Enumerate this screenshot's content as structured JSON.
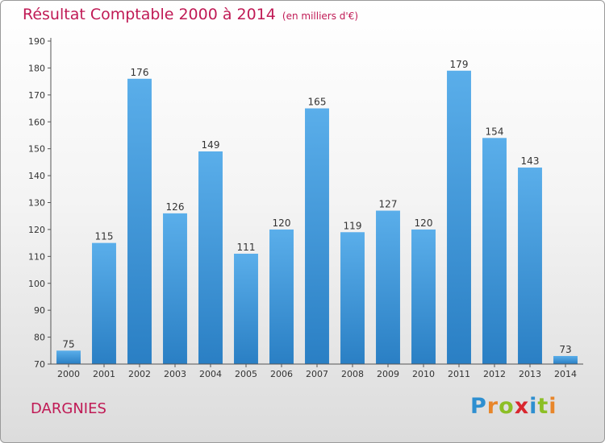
{
  "chart_data": {
    "type": "bar",
    "title": "Résultat Comptable 2000 à 2014",
    "subtitle": "(en milliers d'€)",
    "categories": [
      "2000",
      "2001",
      "2002",
      "2003",
      "2004",
      "2005",
      "2006",
      "2007",
      "2008",
      "2009",
      "2010",
      "2011",
      "2012",
      "2013",
      "2014"
    ],
    "values": [
      75,
      115,
      176,
      126,
      149,
      111,
      120,
      165,
      119,
      127,
      120,
      179,
      154,
      143,
      73
    ],
    "ylim": [
      70,
      190
    ],
    "yticks": [
      70,
      80,
      90,
      100,
      110,
      120,
      130,
      140,
      150,
      160,
      170,
      180,
      190
    ],
    "xlabel": "",
    "ylabel": "",
    "grid": false,
    "bar_color_top": "#5aaeea",
    "bar_color_bottom": "#2a7fc4",
    "title_color": "#c01a55"
  },
  "footer": {
    "commune": "DARGNIES",
    "logo_letters": [
      {
        "ch": "P",
        "color": "#2e8fd0"
      },
      {
        "ch": "r",
        "color": "#e8862a"
      },
      {
        "ch": "o",
        "color": "#8cbf26"
      },
      {
        "ch": "x",
        "color": "#d9262e"
      },
      {
        "ch": "i",
        "color": "#2e8fd0"
      },
      {
        "ch": "t",
        "color": "#8cbf26"
      },
      {
        "ch": "i",
        "color": "#e8862a"
      }
    ]
  }
}
